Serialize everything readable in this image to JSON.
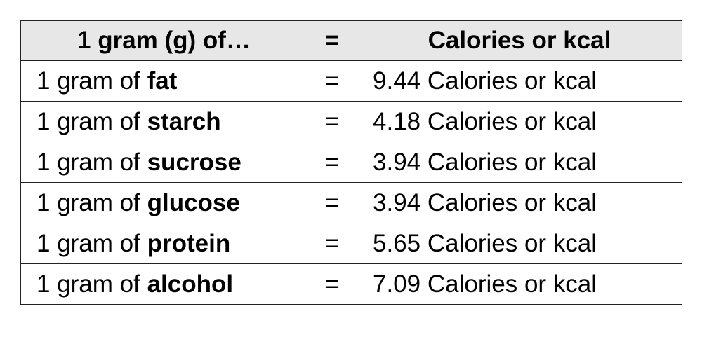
{
  "table": {
    "header": [
      "1 gram (g) of…",
      "=",
      "Calories or kcal"
    ],
    "rows": [
      [
        {
          "text": "1 gram of",
          "bold": "fat"
        },
        "=",
        "9.44 Calories or kcal"
      ],
      [
        {
          "text": "1 gram of",
          "bold": "starch"
        },
        "=",
        "4.18 Calories or kcal"
      ],
      [
        {
          "text": "1 gram of",
          "bold": "sucrose"
        },
        "=",
        "3.94 Calories or kcal"
      ],
      [
        {
          "text": "1 gram of",
          "bold": "glucose"
        },
        "=",
        "3.94 Calories or kcal"
      ],
      [
        {
          "text": "1 gram of",
          "bold": "protein"
        },
        "=",
        "5.65 Calories or kcal"
      ],
      [
        {
          "text": "1 gram of",
          "bold": "alcohol"
        },
        "=",
        "7.09 Calories or kcal"
      ]
    ]
  }
}
